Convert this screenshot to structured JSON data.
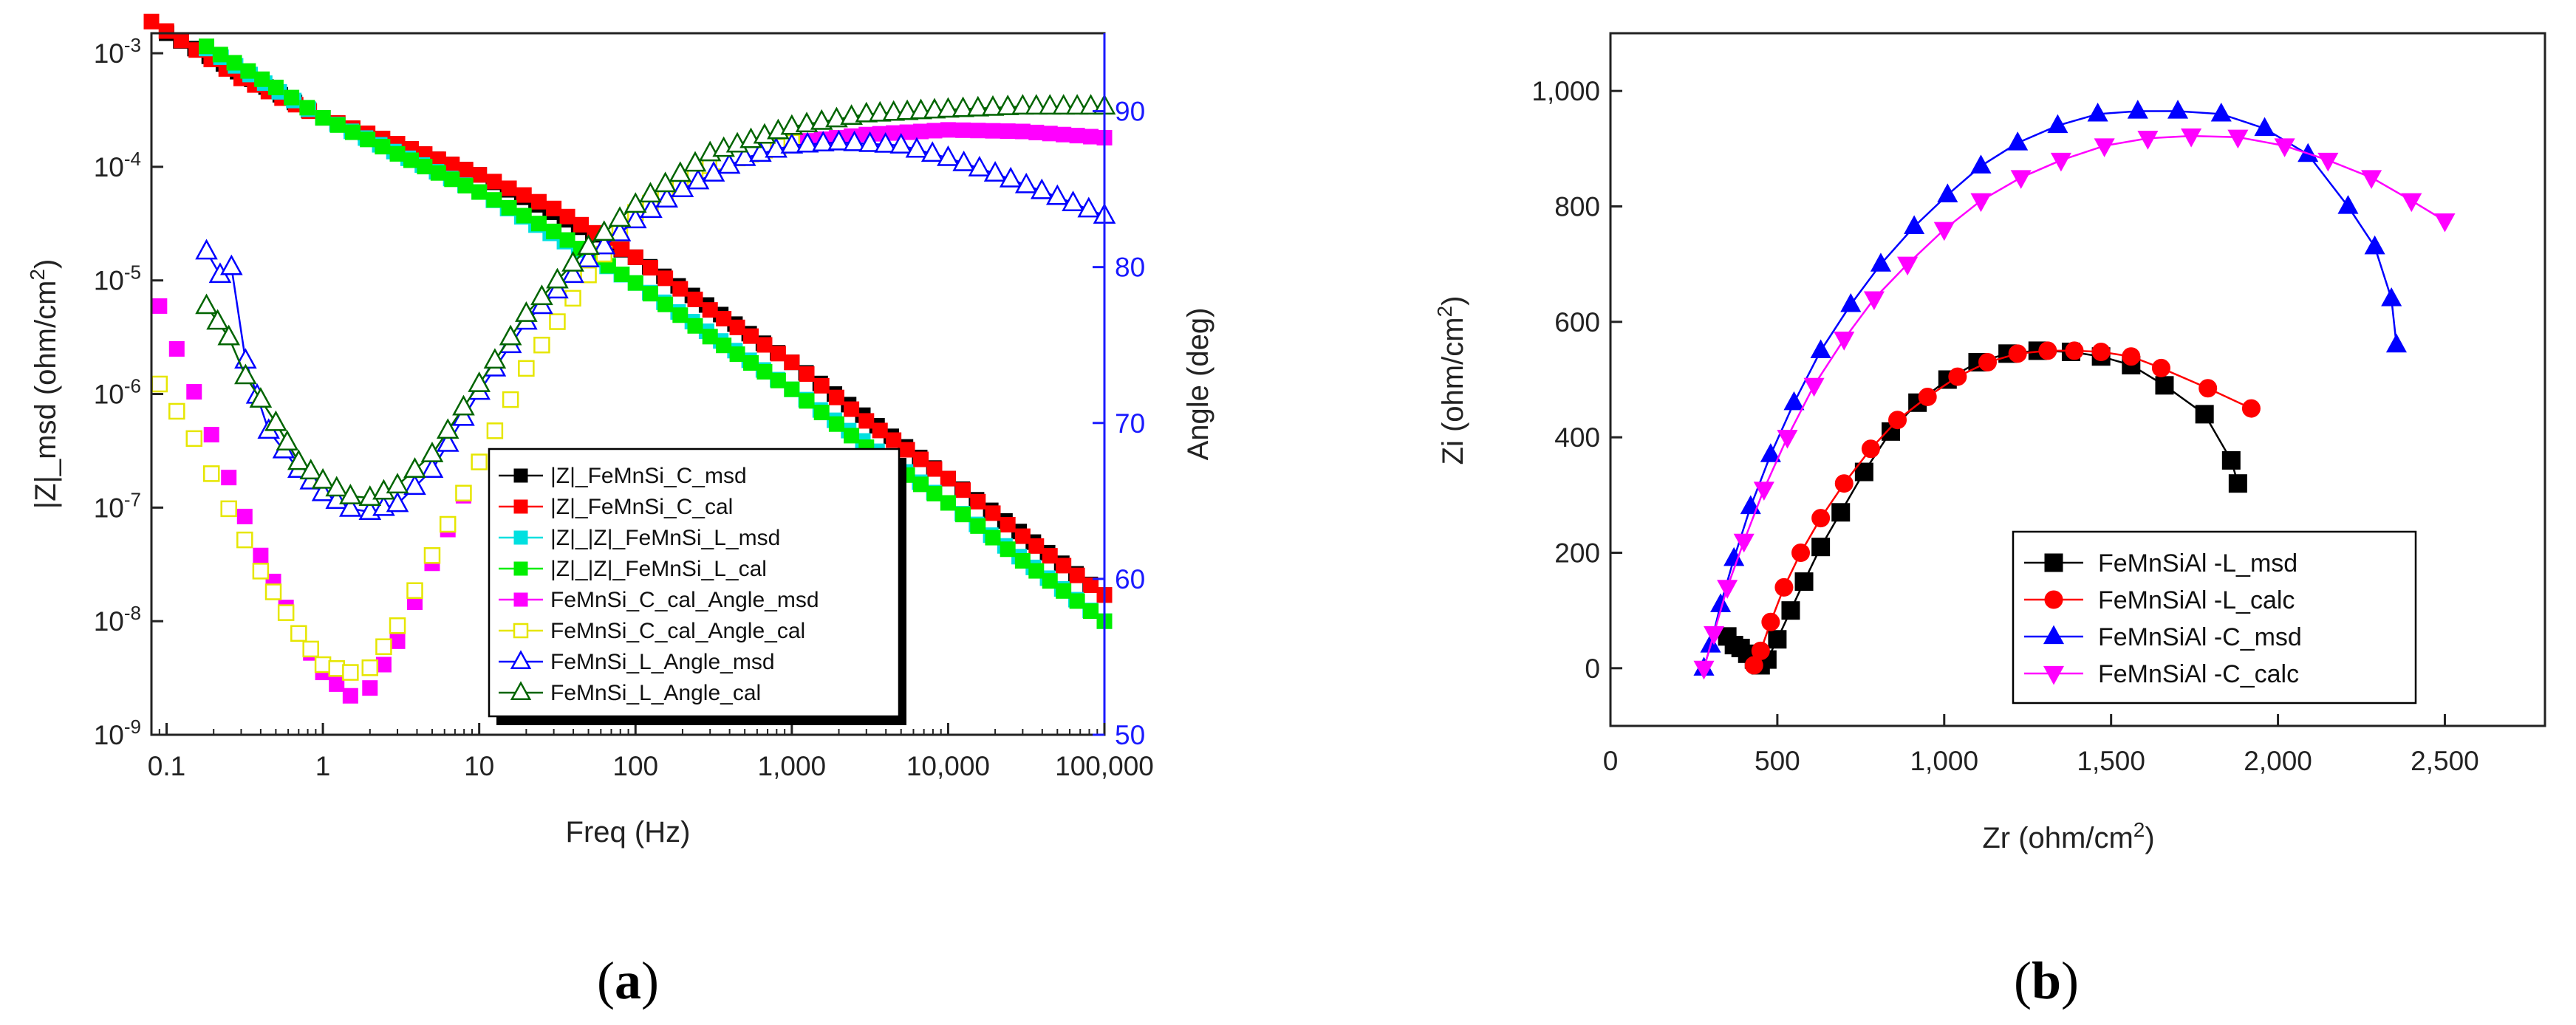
{
  "panel_labels": {
    "a": "(a)",
    "b": "(b)"
  },
  "chart_data": [
    {
      "type": "line",
      "title": "",
      "xlabel": "Freq (Hz)",
      "ylabel": "|Z|_msd (ohm/cm²)",
      "ylabel_parts": {
        "main": "|Z|_msd (ohm/cm",
        "sup": "2",
        "close": ")"
      },
      "y2label": "Angle (deg)",
      "xscale": "log",
      "yscale": "log",
      "xlim": [
        0.08,
        100000
      ],
      "ylim": [
        1e-09,
        0.0015
      ],
      "y2lim": [
        50,
        95
      ],
      "x_ticks": [
        {
          "value": 0.1,
          "label": "0.1"
        },
        {
          "value": 1,
          "label": "1"
        },
        {
          "value": 10,
          "label": "10"
        },
        {
          "value": 100,
          "label": "100"
        },
        {
          "value": 1000,
          "label": "1,000"
        },
        {
          "value": 10000,
          "label": "10,000"
        },
        {
          "value": 100000,
          "label": "100,000"
        }
      ],
      "y_ticks": [
        {
          "value": 1e-09,
          "base": "10",
          "exp": "-9"
        },
        {
          "value": 1e-08,
          "base": "10",
          "exp": "-8"
        },
        {
          "value": 1e-07,
          "base": "10",
          "exp": "-7"
        },
        {
          "value": 1e-06,
          "base": "10",
          "exp": "-6"
        },
        {
          "value": 1e-05,
          "base": "10",
          "exp": "-5"
        },
        {
          "value": 0.0001,
          "base": "10",
          "exp": "-4"
        },
        {
          "value": 0.001,
          "base": "10",
          "exp": "-3"
        }
      ],
      "y2_ticks": [
        50,
        60,
        70,
        80,
        90
      ],
      "axis_colors": {
        "left": "#333333",
        "right": "#1a1aff"
      },
      "legend_position": "lower-right",
      "series": [
        {
          "name": "|Z|_FeMnSi_C_msd",
          "axis": "left",
          "marker": "square",
          "filled": true,
          "color": "#000000",
          "line": false,
          "x": [
            0.1,
            1,
            10,
            100,
            1000,
            10000,
            100000
          ],
          "values": [
            0.0015,
            0.00027,
            8.5e-05,
            1.6e-05,
            1.9e-06,
            1.8e-07,
            1.7e-08
          ]
        },
        {
          "name": "|Z|_FeMnSi_C_cal",
          "axis": "left",
          "marker": "square",
          "filled": true,
          "color": "#ff0000",
          "line": false,
          "x": [
            0.08,
            0.3,
            1,
            3,
            10,
            30,
            100,
            300,
            1000,
            3000,
            10000,
            30000,
            100000
          ],
          "values": [
            0.0019,
            0.0006,
            0.00027,
            0.00016,
            8.5e-05,
            4.3e-05,
            1.6e-05,
            5.5e-06,
            1.9e-06,
            5.8e-07,
            1.8e-07,
            5.6e-08,
            1.7e-08
          ]
        },
        {
          "name": "|Z|_|Z|_FeMnSi_L_msd",
          "axis": "left",
          "marker": "square",
          "filled": true,
          "color": "#00e0e0",
          "line": false,
          "x": [
            0.18,
            1,
            10,
            100,
            1000,
            10000,
            100000
          ],
          "values": [
            0.0011,
            0.00027,
            6e-05,
            9.5e-06,
            1.1e-06,
            1.1e-07,
            1e-08
          ]
        },
        {
          "name": "|Z|_|Z|_FeMnSi_L_cal",
          "axis": "left",
          "marker": "square",
          "filled": true,
          "color": "#00ee00",
          "line": false,
          "x": [
            0.18,
            0.5,
            1,
            3,
            10,
            30,
            100,
            300,
            1000,
            3000,
            10000,
            30000,
            100000
          ],
          "values": [
            0.00115,
            0.0005,
            0.00027,
            0.00013,
            6e-05,
            2.7e-05,
            9.5e-06,
            3.2e-06,
            1.1e-06,
            3.4e-07,
            1.1e-07,
            3.4e-08,
            1e-08
          ]
        },
        {
          "name": "FeMnSi_C_cal_Angle_msd",
          "axis": "right",
          "marker": "square",
          "filled": true,
          "color": "#ff00ff",
          "line": false,
          "x": [
            0.09,
            0.15,
            0.25,
            0.4,
            0.7,
            1,
            1.5,
            2,
            3,
            5,
            10,
            20,
            50,
            100,
            300,
            1000,
            3000,
            10000,
            30000,
            100000
          ],
          "values": [
            77.5,
            72,
            66.5,
            61.5,
            56.5,
            54,
            52.5,
            53,
            56,
            61,
            67.5,
            73.5,
            79.5,
            83.5,
            86.5,
            88,
            88.5,
            88.8,
            88.7,
            88.3
          ]
        },
        {
          "name": "FeMnSi_C_cal_Angle_cal",
          "axis": "right",
          "marker": "square",
          "filled": false,
          "color": "#e6e600",
          "line": false,
          "x": [
            0.09,
            0.15,
            0.25,
            0.4,
            0.7,
            1,
            1.5,
            2,
            3,
            5,
            10,
            20,
            50,
            100,
            300,
            1000
          ],
          "values": [
            72.5,
            69,
            64.5,
            60.5,
            56.5,
            54.5,
            54,
            54.3,
            57,
            61.5,
            67.5,
            73.5,
            79.5,
            83.5,
            86.5,
            88
          ]
        },
        {
          "name": "FeMnSi_L_Angle_msd",
          "axis": "right",
          "marker": "triangle-up",
          "filled": false,
          "color": "#0000ff",
          "line": true,
          "x": [
            0.18,
            0.22,
            0.26,
            0.32,
            0.45,
            0.7,
            1,
            1.5,
            2,
            3,
            5,
            10,
            20,
            50,
            100,
            200,
            500,
            1000,
            2000,
            5000,
            10000,
            20000,
            50000,
            100000
          ],
          "values": [
            81,
            79.5,
            80,
            74,
            69.5,
            67,
            65.5,
            64.5,
            64.3,
            64.8,
            67,
            72,
            76.5,
            80.5,
            83,
            85,
            87,
            87.8,
            88,
            87.8,
            87,
            86,
            84.5,
            83.3
          ]
        },
        {
          "name": "FeMnSi_L_Angle_cal",
          "axis": "right",
          "marker": "triangle-up",
          "filled": false,
          "color": "#006400",
          "line": true,
          "x": [
            0.18,
            0.25,
            0.32,
            0.5,
            0.7,
            1,
            1.5,
            2,
            3,
            5,
            10,
            20,
            50,
            100,
            300,
            1000,
            3000,
            10000,
            30000,
            100000
          ],
          "values": [
            77.5,
            75.5,
            73,
            70,
            67.5,
            66.3,
            65.3,
            65.2,
            66,
            68,
            72.5,
            77,
            81.3,
            84,
            87.3,
            89,
            89.8,
            90.1,
            90.3,
            90.3
          ]
        }
      ]
    },
    {
      "type": "line",
      "title": "",
      "xlabel": "Zr (ohm/cm²)",
      "xlabel_parts": {
        "main": "Zr (ohm/cm",
        "sup": "2",
        "close": ")"
      },
      "ylabel": "Zi (ohm/cm²)",
      "ylabel_parts": {
        "main": "Zi (ohm/cm",
        "sup": "2",
        "close": ")"
      },
      "xlim": [
        0,
        2800
      ],
      "ylim": [
        -100,
        1100
      ],
      "x_ticks": [
        {
          "value": 0,
          "label": "0"
        },
        {
          "value": 500,
          "label": "500"
        },
        {
          "value": 1000,
          "label": "1,000"
        },
        {
          "value": 1500,
          "label": "1,500"
        },
        {
          "value": 2000,
          "label": "2,000"
        },
        {
          "value": 2500,
          "label": "2,500"
        }
      ],
      "y_ticks": [
        {
          "value": 0,
          "label": "0"
        },
        {
          "value": 200,
          "label": "200"
        },
        {
          "value": 400,
          "label": "400"
        },
        {
          "value": 600,
          "label": "600"
        },
        {
          "value": 800,
          "label": "800"
        },
        {
          "value": 1000,
          "label": "1,000"
        }
      ],
      "legend_position": "lower-right",
      "series": [
        {
          "name": "FeMnSiAl -L_msd",
          "marker": "square",
          "filled": true,
          "color": "#000000",
          "x": [
            350,
            370,
            390,
            410,
            430,
            450,
            470,
            500,
            540,
            580,
            630,
            690,
            760,
            840,
            920,
            1010,
            1100,
            1190,
            1280,
            1380,
            1470,
            1560,
            1660,
            1780,
            1860,
            1880
          ],
          "values": [
            55,
            40,
            35,
            25,
            15,
            5,
            15,
            50,
            100,
            150,
            210,
            270,
            340,
            410,
            460,
            500,
            530,
            545,
            550,
            548,
            540,
            525,
            490,
            440,
            360,
            320
          ]
        },
        {
          "name": "FeMnSiAl -L_calc",
          "marker": "circle",
          "filled": true,
          "color": "#ff0000",
          "x": [
            430,
            450,
            480,
            520,
            570,
            630,
            700,
            780,
            860,
            950,
            1040,
            1130,
            1220,
            1310,
            1390,
            1470,
            1560,
            1650,
            1790,
            1920
          ],
          "values": [
            5,
            30,
            80,
            140,
            200,
            260,
            320,
            380,
            430,
            470,
            505,
            530,
            545,
            550,
            550,
            548,
            540,
            520,
            485,
            450
          ]
        },
        {
          "name": "FeMnSiAl -C_msd",
          "marker": "triangle-up",
          "filled": true,
          "color": "#0000ff",
          "x": [
            280,
            300,
            330,
            370,
            420,
            480,
            550,
            630,
            720,
            810,
            910,
            1010,
            1110,
            1220,
            1340,
            1460,
            1580,
            1700,
            1830,
            1960,
            2090,
            2210,
            2290,
            2340,
            2355
          ],
          "values": [
            0,
            40,
            110,
            190,
            280,
            370,
            460,
            550,
            630,
            700,
            765,
            820,
            870,
            910,
            940,
            960,
            965,
            965,
            960,
            935,
            890,
            800,
            730,
            640,
            560
          ]
        },
        {
          "name": "FeMnSiAl -C_calc",
          "marker": "triangle-down",
          "filled": true,
          "color": "#ff00ff",
          "x": [
            280,
            310,
            350,
            400,
            460,
            530,
            610,
            700,
            790,
            890,
            1000,
            1110,
            1230,
            1350,
            1480,
            1610,
            1740,
            1880,
            2020,
            2150,
            2280,
            2400,
            2500
          ],
          "values": [
            0,
            60,
            140,
            220,
            310,
            400,
            490,
            570,
            640,
            700,
            760,
            810,
            850,
            880,
            905,
            918,
            922,
            920,
            905,
            880,
            850,
            810,
            775
          ]
        }
      ]
    }
  ]
}
